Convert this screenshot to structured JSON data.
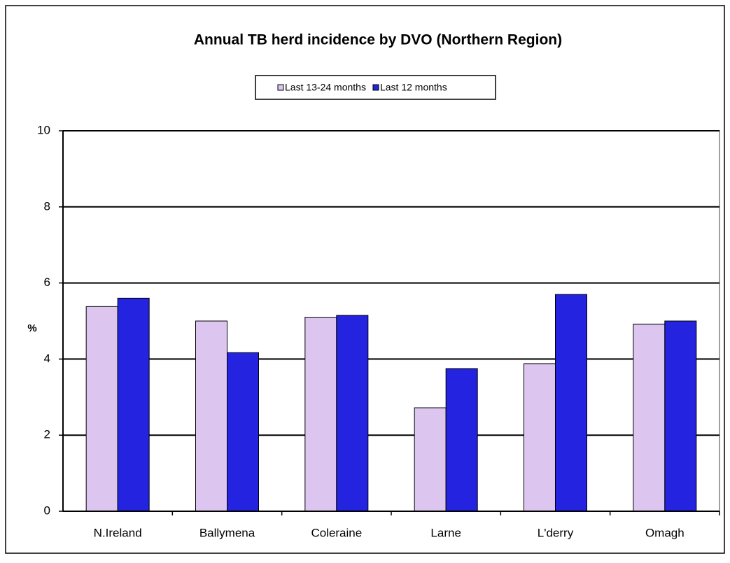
{
  "chart_data": {
    "type": "bar",
    "title": "Annual TB herd incidence by DVO (Northern Region)",
    "y_label": "%",
    "categories": [
      "N.Ireland",
      "Ballymena",
      "Coleraine",
      "Larne",
      "L'derry",
      "Omagh"
    ],
    "series": [
      {
        "name": "Last 13-24 months",
        "color": "#dcc6ef",
        "values": [
          5.38,
          5.0,
          5.1,
          2.72,
          3.88,
          4.92
        ]
      },
      {
        "name": "Last 12 months",
        "color": "#2323e0",
        "values": [
          5.6,
          4.17,
          5.15,
          3.75,
          5.7,
          5.0
        ]
      }
    ],
    "ylim": [
      0,
      10
    ],
    "yticks": [
      0,
      2,
      4,
      6,
      8,
      10
    ],
    "grid": true
  }
}
